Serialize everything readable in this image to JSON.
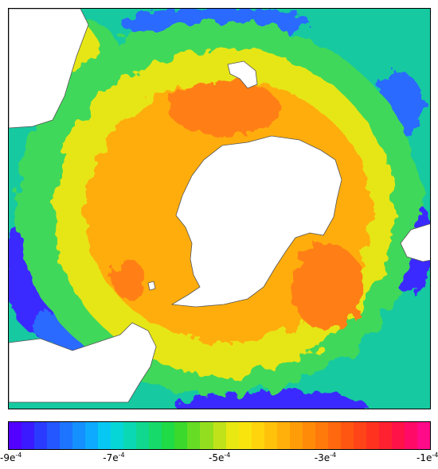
{
  "colorbar": {
    "colors": [
      "#5200ff",
      "#3b1aff",
      "#2a3bff",
      "#2457ff",
      "#1d74ff",
      "#1590ff",
      "#0eaaff",
      "#07c8f2",
      "#06d6d6",
      "#0ad8b4",
      "#10d98f",
      "#16da6a",
      "#1fdb45",
      "#3ad92c",
      "#66dc25",
      "#93df1f",
      "#c0e21a",
      "#e8e813",
      "#f9e40e",
      "#ffd40c",
      "#ffc20b",
      "#ffb00a",
      "#ff9d09",
      "#ff8b09",
      "#ff7a0b",
      "#ff680e",
      "#ff5612",
      "#ff4418",
      "#ff321f",
      "#ff2130",
      "#ff1248",
      "#ff0a66",
      "#ff0a88"
    ],
    "ticks": [
      {
        "label": "-9e",
        "exp": "-4",
        "value": -0.0009
      },
      {
        "label": "-7e",
        "exp": "-4",
        "value": -0.0007
      },
      {
        "label": "-5e",
        "exp": "-4",
        "value": -0.0005
      },
      {
        "label": "-3e",
        "exp": "-4",
        "value": -0.0003
      },
      {
        "label": "-1e",
        "exp": "-4",
        "value": -0.0001
      }
    ],
    "range": [
      -0.0009,
      -0.0001
    ]
  },
  "field_colors": {
    "outer": "#16c9a0",
    "green": "#3fd85a",
    "yellow": "#e6e615",
    "orange": "#ffad0f",
    "red_orange": "#ff7f12",
    "blue": "#2a6bff",
    "deep_blue": "#3a2bff",
    "land": "#ffffff"
  }
}
